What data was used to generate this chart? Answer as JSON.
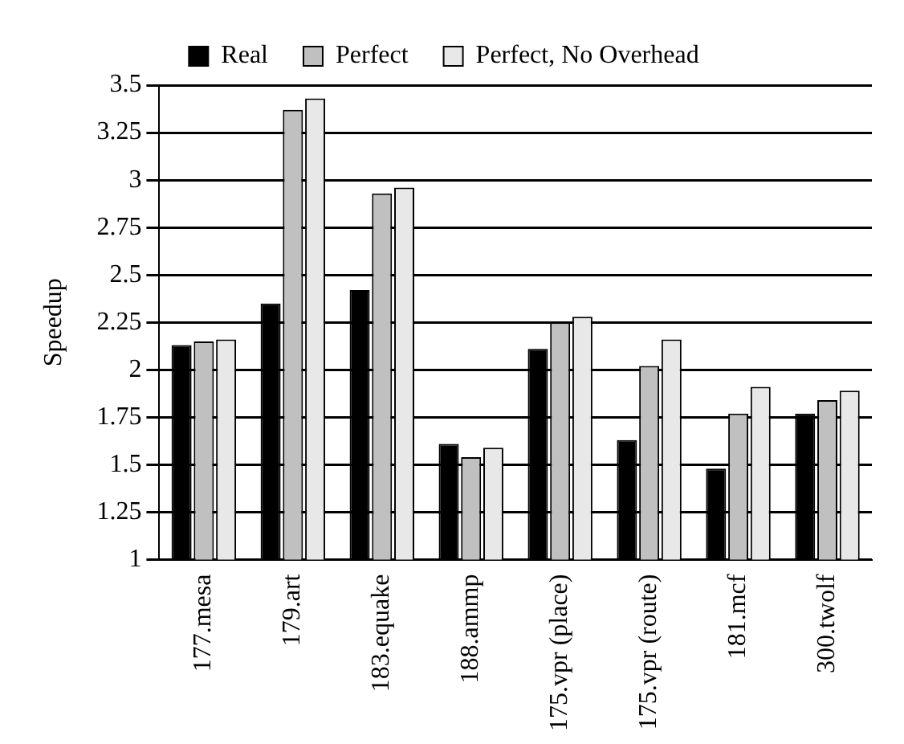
{
  "chart_data": {
    "type": "bar",
    "ylabel": "Speedup",
    "categories": [
      "177.mesa",
      "179.art",
      "183.equake",
      "188.ammp",
      "175.vpr (place)",
      "175.vpr (route)",
      "181.mcf",
      "300.twolf"
    ],
    "series": [
      {
        "name": "Real",
        "color": "#000000",
        "values": [
          2.13,
          2.35,
          2.42,
          1.61,
          2.11,
          1.63,
          1.48,
          1.77
        ]
      },
      {
        "name": "Perfect",
        "color": "#c0c0c0",
        "values": [
          2.15,
          3.37,
          2.93,
          1.54,
          2.25,
          2.02,
          1.77,
          1.84
        ]
      },
      {
        "name": "Perfect, No Overhead",
        "color": "#e8e8e8",
        "values": [
          2.16,
          3.43,
          2.96,
          1.59,
          2.28,
          2.16,
          1.91,
          1.89
        ]
      }
    ],
    "ylim": [
      1,
      3.5
    ],
    "yticks": [
      1,
      1.25,
      1.5,
      1.75,
      2,
      2.25,
      2.5,
      2.75,
      3,
      3.25,
      3.5
    ],
    "grid": "y",
    "legend": "top"
  }
}
